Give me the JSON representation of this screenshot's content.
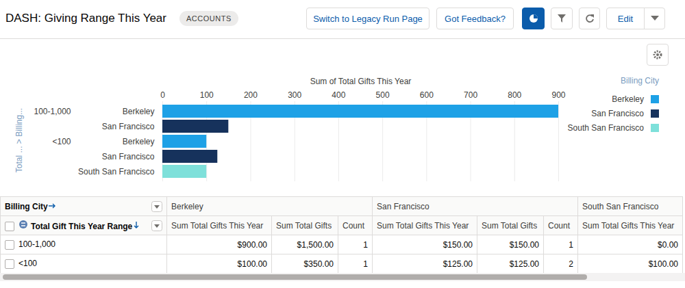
{
  "header": {
    "title": "DASH: Giving Range This Year",
    "badge": "ACCOUNTS",
    "buttons": [
      "Switch to Legacy Run Page",
      "Got Feedback?",
      "Edit"
    ]
  },
  "chart_data": {
    "type": "bar",
    "orientation": "horizontal",
    "xlabel": "Sum of Total Gifts This Year",
    "ylabel": "Total ... > Billing...",
    "groups": [
      {
        "label": "100-1,000",
        "categories": [
          "Berkeley",
          "San Francisco"
        ],
        "values": [
          900,
          150
        ]
      },
      {
        "label": "<100",
        "categories": [
          "Berkeley",
          "San Francisco",
          "South San Francisco"
        ],
        "values": [
          100,
          125,
          100
        ]
      }
    ],
    "legend_title": "Billing City",
    "series": [
      {
        "name": "Berkeley",
        "color": "#1ea1e6"
      },
      {
        "name": "San Francisco",
        "color": "#16325c"
      },
      {
        "name": "South San Francisco",
        "color": "#7ee0da"
      }
    ],
    "xlim": [
      0,
      900
    ],
    "xticks": [
      0,
      100,
      200,
      300,
      400,
      500,
      600,
      700,
      800,
      900
    ],
    "grid": true,
    "legend": "right"
  },
  "table": {
    "column_header": "Billing City",
    "row_header": "Total Gift This Year Range",
    "column_groups": [
      {
        "label": "Berkeley",
        "columns": [
          "Sum Total Gifts This Year",
          "Sum Total Gifts",
          "Count"
        ]
      },
      {
        "label": "San Francisco",
        "columns": [
          "Sum Total Gifts This Year",
          "Sum Total Gifts",
          "Count"
        ]
      },
      {
        "label": "South San Francisco",
        "columns": [
          "Sum Total Gifts This Year"
        ]
      }
    ],
    "rows": [
      {
        "label": "100-1,000",
        "cells": [
          "$900.00",
          "$1,500.00",
          "1",
          "$150.00",
          "$150.00",
          "1",
          "$0.00"
        ]
      },
      {
        "label": "<100",
        "cells": [
          "$100.00",
          "$350.00",
          "1",
          "$125.00",
          "$125.00",
          "2",
          "$100.00"
        ]
      }
    ]
  }
}
